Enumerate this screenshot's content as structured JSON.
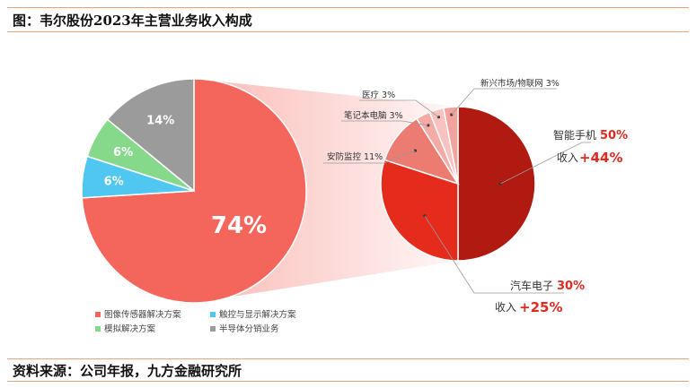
{
  "header": {
    "title": "图：韦尔股份2023年主营业务收入构成"
  },
  "footer": {
    "source": "资料来源：公司年报，九方金融研究所"
  },
  "colors": {
    "image_sensor": "#f4665c",
    "touch_display": "#4fc7f0",
    "analog": "#86d88a",
    "semiconductor_dist": "#9b9b9b",
    "smartphone": "#b01a10",
    "auto": "#e52c1c",
    "security": "#ec7b72",
    "notebook": "#f4aaa5",
    "medical": "#f7c2bf",
    "iot": "#f2a39e",
    "accent_red": "#e12a1f",
    "border": "#e4a37a"
  },
  "chart_data": [
    {
      "type": "pie",
      "slices": [
        {
          "label": "图像传感器解决方案",
          "value": 74,
          "display": "74%"
        },
        {
          "label": "触控与显示解决方案",
          "value": 6,
          "display": "6%"
        },
        {
          "label": "模拟解决方案",
          "value": 6,
          "display": "6%"
        },
        {
          "label": "半导体分销业务",
          "value": 14,
          "display": "14%"
        }
      ],
      "legend": [
        "图像传感器解决方案",
        "触控与显示解决方案",
        "模拟解决方案",
        "半导体分销业务"
      ],
      "legend_position": "bottom-left"
    },
    {
      "type": "pie",
      "slices": [
        {
          "label": "智能手机",
          "value": 50,
          "pct": "50%",
          "growth_label": "收入",
          "growth": "+44%"
        },
        {
          "label": "汽车电子",
          "value": 30,
          "pct": "30%",
          "growth_label": "收入",
          "growth": "+25%"
        },
        {
          "label": "安防监控",
          "value": 11,
          "pct": "11%"
        },
        {
          "label": "笔记本电脑",
          "value": 3,
          "pct": "3%"
        },
        {
          "label": "医疗",
          "value": 3,
          "pct": "3%"
        },
        {
          "label": "新兴市场/物联网",
          "value": 3,
          "pct": "3%"
        }
      ]
    }
  ]
}
